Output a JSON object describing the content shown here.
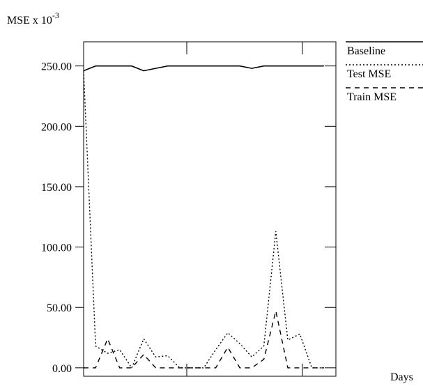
{
  "chart_data": {
    "type": "line",
    "ylabel": "MSE x 10",
    "ylabel_exponent": "-3",
    "xlabel": "Days",
    "xlim": [
      0,
      21
    ],
    "ylim": [
      -7,
      270
    ],
    "y_ticks": [
      0,
      50,
      100,
      150,
      200,
      250
    ],
    "y_tick_labels": [
      "0.00",
      "50.00",
      "100.00",
      "150.00",
      "200.00",
      "250.00"
    ],
    "legend_position": "right",
    "series": [
      {
        "name": "Baseline",
        "style": "solid",
        "x": [
          0,
          1,
          2,
          3,
          4,
          5,
          6,
          7,
          8,
          9,
          10,
          11,
          12,
          13,
          14,
          15,
          16,
          17,
          18,
          19,
          20
        ],
        "values": [
          246,
          250,
          250,
          250,
          250,
          246,
          248,
          250,
          250,
          250,
          250,
          250,
          250,
          250,
          248,
          250,
          250,
          250,
          250,
          250,
          250
        ]
      },
      {
        "name": "Test MSE",
        "style": "dotted",
        "x": [
          0,
          1,
          2,
          3,
          4,
          5,
          6,
          7,
          8,
          9,
          10,
          11,
          12,
          13,
          14,
          15,
          16,
          17,
          18,
          19,
          20
        ],
        "values": [
          246,
          18,
          12,
          15,
          0,
          24,
          9,
          10,
          0,
          0,
          0,
          15,
          29,
          20,
          9,
          18,
          113,
          23,
          28,
          0,
          0
        ]
      },
      {
        "name": "Train MSE",
        "style": "dashed",
        "x": [
          0,
          1,
          2,
          3,
          4,
          5,
          6,
          7,
          8,
          9,
          10,
          11,
          12,
          13,
          14,
          15,
          16,
          17,
          18,
          19,
          20
        ],
        "values": [
          0,
          0,
          24,
          0,
          0,
          11,
          0,
          0,
          0,
          0,
          0,
          0,
          17,
          0,
          0,
          7,
          47,
          0,
          0,
          0,
          0
        ]
      }
    ]
  }
}
